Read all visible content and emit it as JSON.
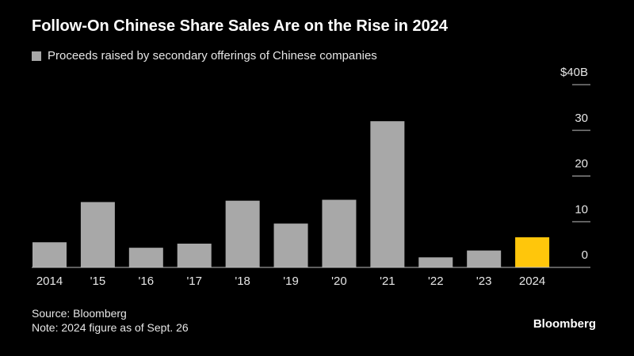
{
  "header": {
    "title": "Follow-On Chinese Share Sales Are on the Rise in 2024"
  },
  "footer": {
    "source": "Source: Bloomberg",
    "note": "Note: 2024 figure as of Sept. 26",
    "brand": "Bloomberg"
  },
  "colors": {
    "background": "#000000",
    "bar": "#a8a8a8",
    "highlight": "#ffc60b",
    "text": "#e6e6e6"
  },
  "chart_data": {
    "type": "bar",
    "categories": [
      "2014",
      "'15",
      "'16",
      "'17",
      "'18",
      "'19",
      "'20",
      "'21",
      "'22",
      "'23",
      "2024"
    ],
    "series": [
      {
        "name": "Proceeds raised by secondary offerings of Chinese companies",
        "values": [
          5.5,
          14.3,
          4.3,
          5.2,
          14.6,
          9.6,
          14.8,
          32.0,
          2.2,
          3.7,
          6.6
        ]
      }
    ],
    "highlight_category": "2024",
    "ylim": [
      0,
      40
    ],
    "y_ticks": [
      0,
      10,
      20,
      30,
      40
    ],
    "y_tick_labels": [
      "0",
      "10",
      "20",
      "30",
      "$40B"
    ],
    "axis_side": "right",
    "grid": false
  }
}
